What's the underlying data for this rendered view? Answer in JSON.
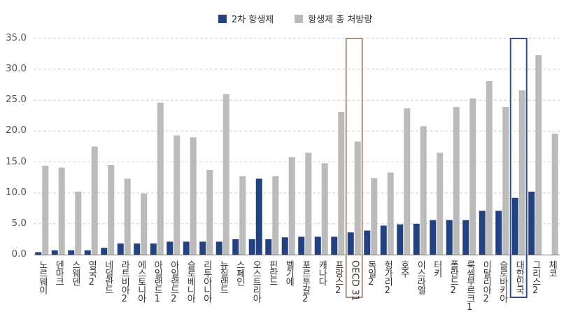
{
  "legend": {
    "secondary": {
      "label": "2차 항생제",
      "color": "#23427f"
    },
    "total": {
      "label": "항생제 총 처방량",
      "color": "#bcbbbc"
    }
  },
  "chart_data": {
    "type": "bar",
    "title": "",
    "xlabel": "",
    "ylabel": "",
    "ylim": [
      0,
      35
    ],
    "yticks": [
      "0.0",
      "5.0",
      "10.0",
      "15.0",
      "20.0",
      "25.0",
      "30.0",
      "35.0"
    ],
    "grid": true,
    "legend_position": "top",
    "categories": [
      "노르웨이",
      "덴마크",
      "스웨덴",
      "영국2",
      "네덜란드",
      "라트비아2",
      "에스토니아",
      "아일랜드1",
      "아일랜드2",
      "슬로베니아",
      "리투아니아",
      "뉴질랜드",
      "스페인",
      "오스트리아",
      "핀란드",
      "벨기에",
      "포르투갈2",
      "캐나다",
      "프랑스2",
      "OECD 31",
      "독일2",
      "헝가리2",
      "호주",
      "이스라엘",
      "터키",
      "폴란드2",
      "룩셈부르크1",
      "이탈리아2",
      "슬로바키아",
      "대한민국",
      "그리스2",
      "체코"
    ],
    "series": [
      {
        "name": "2차 항생제",
        "color": "#23427f",
        "values": [
          0.4,
          0.7,
          0.7,
          0.7,
          1.1,
          1.8,
          1.8,
          1.8,
          2.1,
          2.1,
          2.1,
          2.1,
          2.5,
          2.5,
          2.5,
          2.8,
          2.9,
          2.9,
          2.9,
          3.6,
          3.9,
          4.7,
          4.9,
          5.0,
          5.6,
          5.6,
          5.6,
          7.1,
          7.1,
          9.2,
          10.2,
          null
        ]
      },
      {
        "name": "항생제 총 처방량",
        "color": "#bcbbbc",
        "values": [
          14.4,
          14.1,
          10.2,
          17.5,
          14.5,
          12.3,
          9.9,
          24.6,
          19.3,
          19.0,
          13.7,
          26.0,
          12.7,
          12.3,
          12.7,
          15.8,
          16.5,
          14.8,
          23.1,
          18.3,
          12.4,
          13.3,
          23.7,
          20.8,
          16.5,
          23.9,
          25.3,
          28.1,
          23.9,
          26.6,
          32.3,
          19.6
        ]
      }
    ],
    "total_bar_color_override": {
      "오스트리아": "#23427f"
    },
    "highlighted": [
      {
        "category": "OECD 31",
        "color": "#a89689"
      },
      {
        "category": "대한민국",
        "color": "#2f4f8a"
      }
    ]
  }
}
